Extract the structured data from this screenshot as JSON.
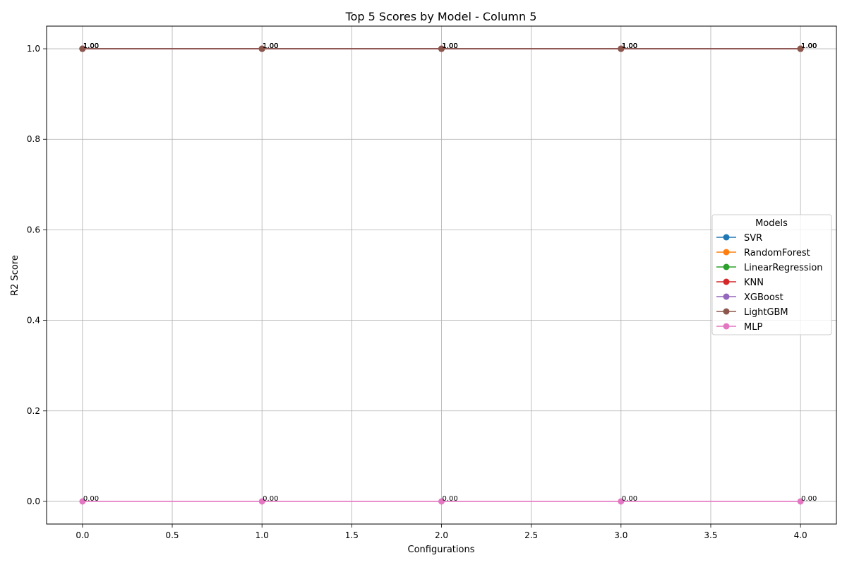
{
  "chart_data": {
    "type": "line",
    "title": "Top 5 Scores by Model - Column 5",
    "xlabel": "Configurations",
    "ylabel": "R2 Score",
    "xlim": [
      -0.2,
      4.2
    ],
    "ylim": [
      -0.05,
      1.05
    ],
    "x": [
      0,
      1,
      2,
      3,
      4
    ],
    "x_ticks": [
      0.0,
      0.5,
      1.0,
      1.5,
      2.0,
      2.5,
      3.0,
      3.5,
      4.0
    ],
    "x_tick_labels": [
      "0.0",
      "0.5",
      "1.0",
      "1.5",
      "2.0",
      "2.5",
      "3.0",
      "3.5",
      "4.0"
    ],
    "y_ticks": [
      0.0,
      0.2,
      0.4,
      0.6,
      0.8,
      1.0
    ],
    "y_tick_labels": [
      "0.0",
      "0.2",
      "0.4",
      "0.6",
      "0.8",
      "1.0"
    ],
    "grid": true,
    "legend_title": "Models",
    "legend_position": "center-right",
    "series": [
      {
        "name": "SVR",
        "color": "#1f77b4",
        "values": [
          1.0,
          1.0,
          1.0,
          1.0,
          1.0
        ],
        "labels": [
          "1.00",
          "1.00",
          "1.00",
          "1.00",
          "1.00"
        ]
      },
      {
        "name": "RandomForest",
        "color": "#ff7f0e",
        "values": [
          1.0,
          1.0,
          1.0,
          1.0,
          1.0
        ],
        "labels": [
          "1.00",
          "1.00",
          "1.00",
          "1.00",
          "1.00"
        ]
      },
      {
        "name": "LinearRegression",
        "color": "#2ca02c",
        "values": [
          1.0,
          1.0,
          1.0,
          1.0,
          1.0
        ],
        "labels": [
          "1.00",
          "1.00",
          "1.00",
          "1.00",
          "1.00"
        ]
      },
      {
        "name": "KNN",
        "color": "#d62728",
        "values": [
          1.0,
          1.0,
          1.0,
          1.0,
          1.0
        ],
        "labels": [
          "1.00",
          "1.00",
          "1.00",
          "1.00",
          "1.00"
        ]
      },
      {
        "name": "XGBoost",
        "color": "#9467bd",
        "values": [
          1.0,
          1.0,
          1.0,
          1.0,
          1.0
        ],
        "labels": [
          "1.00",
          "1.00",
          "1.00",
          "1.00",
          "1.00"
        ]
      },
      {
        "name": "LightGBM",
        "color": "#8c564b",
        "values": [
          1.0,
          1.0,
          1.0,
          1.0,
          1.0
        ],
        "labels": [
          "1.00",
          "1.00",
          "1.00",
          "1.00",
          "1.00"
        ]
      },
      {
        "name": "MLP",
        "color": "#e377c2",
        "values": [
          0.0,
          0.0,
          0.0,
          0.0,
          0.0
        ],
        "labels": [
          "0.00",
          "0.00",
          "0.00",
          "0.00",
          "0.00"
        ]
      }
    ]
  }
}
